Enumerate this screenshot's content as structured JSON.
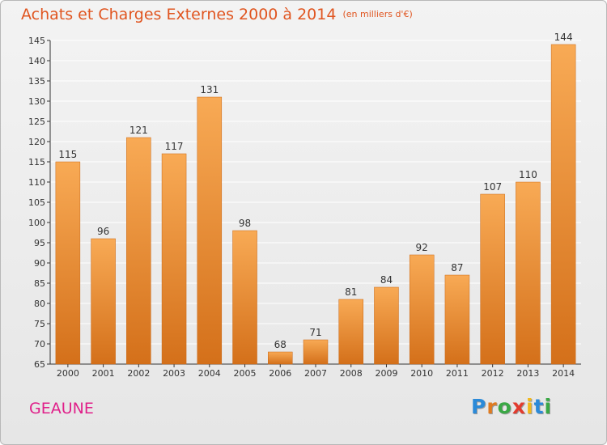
{
  "title": "Achats et Charges Externes 2000 à 2014",
  "subtitle": "(en milliers d'€)",
  "commune": "GEAUNE",
  "logo": {
    "text": "Proxiti",
    "letters": [
      "P",
      "r",
      "o",
      "x",
      "i",
      "t",
      "i"
    ]
  },
  "colors": {
    "bar_light": "#f7a750",
    "bar_dark": "#d8741d",
    "title": "#e05520",
    "commune": "#e0208a",
    "grid": "#ffffff"
  },
  "chart_data": {
    "type": "bar",
    "title": "Achats et Charges Externes 2000 à 2014",
    "subtitle": "(en milliers d'€)",
    "categories": [
      "2000",
      "2001",
      "2002",
      "2003",
      "2004",
      "2005",
      "2006",
      "2007",
      "2008",
      "2009",
      "2010",
      "2011",
      "2012",
      "2013",
      "2014"
    ],
    "values": [
      115,
      96,
      121,
      117,
      131,
      98,
      68,
      71,
      81,
      84,
      92,
      87,
      107,
      110,
      144
    ],
    "ylim": [
      65,
      145
    ],
    "yticks": [
      65,
      70,
      75,
      80,
      85,
      90,
      95,
      100,
      105,
      110,
      115,
      120,
      125,
      130,
      135,
      140,
      145
    ],
    "grid": true,
    "data_labels": true
  }
}
